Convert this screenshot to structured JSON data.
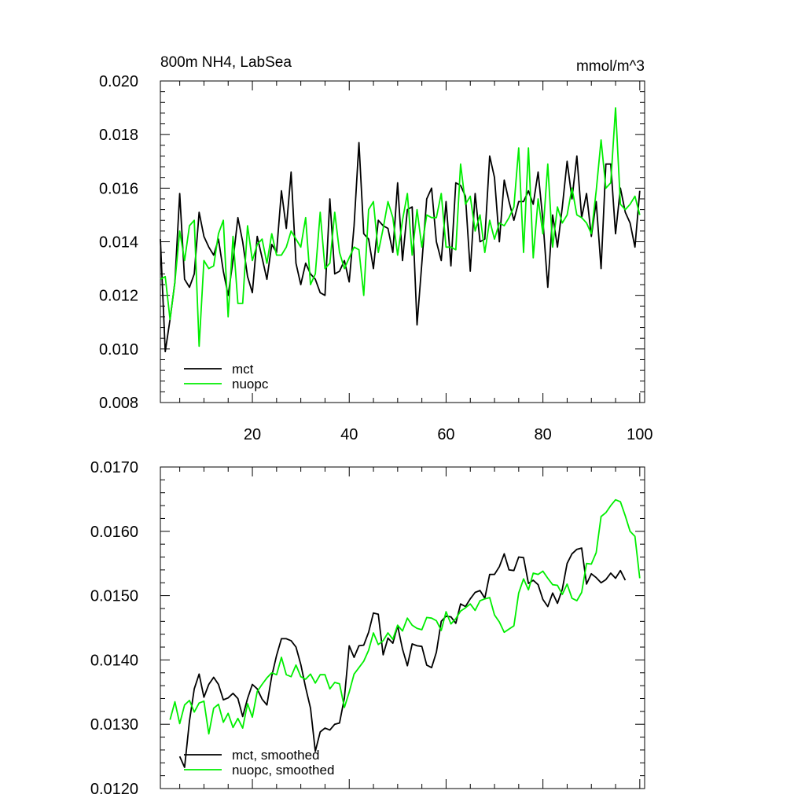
{
  "chart_data": [
    {
      "type": "line",
      "title": "800m NH4, LabSea",
      "units": "mmol/m^3",
      "xlabel": "",
      "ylabel": "",
      "xlim": [
        1,
        101
      ],
      "ylim": [
        0.008,
        0.02
      ],
      "xticks": [
        20,
        40,
        60,
        80,
        100
      ],
      "xtick_labels": [
        "20",
        "40",
        "60",
        "80",
        "100"
      ],
      "yticks": [
        0.008,
        0.01,
        0.012,
        0.014,
        0.016,
        0.018,
        0.02
      ],
      "ytick_labels": [
        "0.008",
        "0.010",
        "0.012",
        "0.014",
        "0.016",
        "0.018",
        "0.020"
      ],
      "legend": "bottom-left",
      "series": [
        {
          "name": "mct",
          "color": "#000000",
          "x_start": 1,
          "values": [
            0.0141,
            0.0099,
            0.0111,
            0.0125,
            0.0158,
            0.0126,
            0.0123,
            0.0128,
            0.0151,
            0.0142,
            0.0138,
            0.0135,
            0.0141,
            0.0129,
            0.012,
            0.0133,
            0.0149,
            0.014,
            0.0127,
            0.0121,
            0.0142,
            0.0134,
            0.0126,
            0.0139,
            0.0136,
            0.0159,
            0.0145,
            0.0166,
            0.0132,
            0.0124,
            0.0132,
            0.0128,
            0.0126,
            0.0121,
            0.012,
            0.0156,
            0.0128,
            0.0129,
            0.0133,
            0.0125,
            0.0146,
            0.0177,
            0.0143,
            0.0141,
            0.013,
            0.0148,
            0.0146,
            0.0145,
            0.0136,
            0.0162,
            0.0133,
            0.0152,
            0.0153,
            0.0109,
            0.0132,
            0.0156,
            0.016,
            0.014,
            0.0133,
            0.0155,
            0.0131,
            0.0162,
            0.0161,
            0.0157,
            0.0129,
            0.0158,
            0.014,
            0.0141,
            0.0172,
            0.0164,
            0.014,
            0.0163,
            0.0155,
            0.0148,
            0.0155,
            0.0155,
            0.0159,
            0.0154,
            0.0166,
            0.0148,
            0.0123,
            0.015,
            0.0138,
            0.0153,
            0.017,
            0.0156,
            0.0172,
            0.0149,
            0.0158,
            0.0142,
            0.0155,
            0.013,
            0.0169,
            0.0169,
            0.0143,
            0.016,
            0.0151,
            0.0147,
            0.0138,
            0.0159
          ]
        },
        {
          "name": "nuopc",
          "color": "#00ee00",
          "x_start": 1,
          "values": [
            0.0126,
            0.0127,
            0.0111,
            0.0125,
            0.0144,
            0.0133,
            0.0146,
            0.0148,
            0.0101,
            0.0133,
            0.013,
            0.0131,
            0.0143,
            0.0148,
            0.0112,
            0.0142,
            0.0117,
            0.0117,
            0.0146,
            0.0133,
            0.0139,
            0.0141,
            0.0132,
            0.0143,
            0.0135,
            0.0135,
            0.0138,
            0.0144,
            0.0141,
            0.0138,
            0.0149,
            0.0124,
            0.0128,
            0.0151,
            0.013,
            0.0132,
            0.0151,
            0.0136,
            0.013,
            0.0134,
            0.0138,
            0.0137,
            0.012,
            0.0152,
            0.0155,
            0.0136,
            0.0145,
            0.0155,
            0.0149,
            0.0135,
            0.0148,
            0.0158,
            0.0135,
            0.0152,
            0.0138,
            0.015,
            0.0149,
            0.0149,
            0.0158,
            0.0138,
            0.0138,
            0.0137,
            0.0169,
            0.0154,
            0.0157,
            0.0144,
            0.015,
            0.0136,
            0.0148,
            0.0141,
            0.0147,
            0.0146,
            0.0149,
            0.0153,
            0.0175,
            0.0136,
            0.0175,
            0.0134,
            0.0156,
            0.0143,
            0.0169,
            0.0138,
            0.0153,
            0.0147,
            0.015,
            0.016,
            0.015,
            0.0149,
            0.0147,
            0.0143,
            0.0159,
            0.0178,
            0.016,
            0.0162,
            0.019,
            0.0154,
            0.0152,
            0.0154,
            0.0157,
            0.015
          ]
        }
      ]
    },
    {
      "type": "line",
      "title": "",
      "units": "",
      "xlabel": "",
      "ylabel": "",
      "xlim": [
        1,
        101
      ],
      "ylim": [
        0.012,
        0.017
      ],
      "xticks": [
        20,
        40,
        60,
        80,
        100
      ],
      "xtick_labels": [],
      "yticks": [
        0.012,
        0.013,
        0.014,
        0.015,
        0.016,
        0.017
      ],
      "ytick_labels": [
        "0.0120",
        "0.0130",
        "0.0140",
        "0.0150",
        "0.0160",
        "0.0170"
      ],
      "legend": "bottom-left",
      "series": [
        {
          "name": "mct, smoothed",
          "color": "#000000",
          "x_start": 5,
          "values": [
            0.0125,
            0.01233,
            0.01305,
            0.01355,
            0.01378,
            0.01342,
            0.01362,
            0.01373,
            0.01362,
            0.01338,
            0.01341,
            0.01348,
            0.0134,
            0.01312,
            0.0134,
            0.01362,
            0.01355,
            0.01339,
            0.0133,
            0.01375,
            0.01407,
            0.01433,
            0.01433,
            0.0143,
            0.0142,
            0.01393,
            0.01357,
            0.01325,
            0.01258,
            0.01288,
            0.01294,
            0.01291,
            0.013,
            0.01302,
            0.01341,
            0.01422,
            0.01404,
            0.01422,
            0.01423,
            0.01443,
            0.01473,
            0.01471,
            0.01408,
            0.01434,
            0.01426,
            0.01453,
            0.01417,
            0.01391,
            0.01425,
            0.01422,
            0.01421,
            0.01392,
            0.01388,
            0.01412,
            0.0146,
            0.01468,
            0.01467,
            0.01457,
            0.01487,
            0.01483,
            0.01495,
            0.01505,
            0.01508,
            0.01496,
            0.01533,
            0.01533,
            0.01545,
            0.01565,
            0.0154,
            0.01539,
            0.0156,
            0.01559,
            0.01519,
            0.01524,
            0.01517,
            0.01494,
            0.01483,
            0.01504,
            0.01488,
            0.0151,
            0.0155,
            0.01565,
            0.01572,
            0.01574,
            0.01518,
            0.01534,
            0.01528,
            0.0152,
            0.01525,
            0.01535,
            0.01527,
            0.01539,
            0.01524
          ]
        },
        {
          "name": "nuopc, smoothed",
          "color": "#00ee00",
          "x_start": 3,
          "values": [
            0.01307,
            0.01335,
            0.01301,
            0.0133,
            0.01337,
            0.01319,
            0.01333,
            0.01336,
            0.01285,
            0.01325,
            0.01331,
            0.01303,
            0.01317,
            0.01295,
            0.01309,
            0.01294,
            0.01332,
            0.01311,
            0.01351,
            0.01362,
            0.01372,
            0.0138,
            0.01377,
            0.01404,
            0.01377,
            0.01374,
            0.01392,
            0.01374,
            0.0137,
            0.01378,
            0.01364,
            0.01377,
            0.01377,
            0.01355,
            0.01365,
            0.01363,
            0.01326,
            0.0135,
            0.01378,
            0.01388,
            0.01398,
            0.01415,
            0.01442,
            0.01424,
            0.0143,
            0.01442,
            0.01432,
            0.01454,
            0.01445,
            0.01465,
            0.01454,
            0.01449,
            0.01447,
            0.01466,
            0.01465,
            0.01461,
            0.01446,
            0.01475,
            0.01456,
            0.01464,
            0.01476,
            0.01481,
            0.01487,
            0.01477,
            0.01492,
            0.01495,
            0.01497,
            0.0147,
            0.01459,
            0.01443,
            0.01448,
            0.01453,
            0.01504,
            0.01526,
            0.01509,
            0.01535,
            0.01533,
            0.01538,
            0.01527,
            0.01517,
            0.01516,
            0.01502,
            0.01518,
            0.01496,
            0.01492,
            0.01505,
            0.0155,
            0.01549,
            0.01567,
            0.01623,
            0.01629,
            0.0164,
            0.01649,
            0.01646,
            0.01624,
            0.016,
            0.01592,
            0.01527
          ]
        }
      ]
    }
  ]
}
